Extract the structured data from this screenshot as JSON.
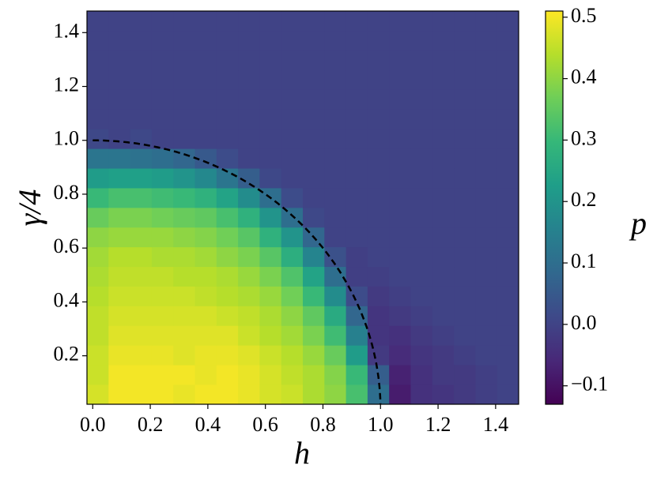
{
  "chart_data": {
    "type": "heatmap",
    "xlabel": "h",
    "ylabel": "γ/4",
    "colorbar_label": "p",
    "x": [
      0.0175,
      0.0925,
      0.1675,
      0.2425,
      0.3175,
      0.3925,
      0.4675,
      0.5425,
      0.6175,
      0.6925,
      0.7675,
      0.8425,
      0.9175,
      0.9925,
      1.0675,
      1.1425,
      1.2175,
      1.2925,
      1.3675,
      1.4425
    ],
    "y": [
      0.057,
      0.13,
      0.203,
      0.276,
      0.349,
      0.422,
      0.495,
      0.568,
      0.641,
      0.714,
      0.787,
      0.86,
      0.933,
      1.006,
      1.079,
      1.152,
      1.225,
      1.298,
      1.371,
      1.444
    ],
    "z": [
      [
        0.47,
        0.5,
        0.5,
        0.5,
        0.49,
        0.5,
        0.5,
        0.49,
        0.47,
        0.46,
        0.43,
        0.4,
        0.32,
        0.1,
        -0.08,
        -0.04,
        -0.03,
        -0.02,
        -0.01,
        0
      ],
      [
        0.46,
        0.5,
        0.5,
        0.5,
        0.5,
        0.49,
        0.5,
        0.49,
        0.47,
        0.45,
        0.43,
        0.39,
        0.3,
        0.06,
        -0.07,
        -0.04,
        -0.02,
        -0.02,
        -0.01,
        0
      ],
      [
        0.46,
        0.49,
        0.49,
        0.49,
        0.48,
        0.49,
        0.49,
        0.48,
        0.46,
        0.44,
        0.41,
        0.36,
        0.22,
        -0.02,
        -0.05,
        -0.03,
        -0.02,
        -0.01,
        0,
        0
      ],
      [
        0.45,
        0.48,
        0.48,
        0.48,
        0.48,
        0.48,
        0.48,
        0.46,
        0.44,
        0.42,
        0.38,
        0.31,
        0.15,
        -0.03,
        -0.04,
        -0.02,
        -0.01,
        0,
        0,
        0
      ],
      [
        0.45,
        0.47,
        0.47,
        0.47,
        0.47,
        0.47,
        0.46,
        0.45,
        0.43,
        0.4,
        0.35,
        0.26,
        0.08,
        -0.03,
        -0.02,
        -0.01,
        0,
        0,
        0,
        0
      ],
      [
        0.44,
        0.46,
        0.46,
        0.46,
        0.46,
        0.45,
        0.44,
        0.43,
        0.41,
        0.37,
        0.3,
        0.18,
        0.02,
        -0.02,
        -0.01,
        0,
        0,
        0,
        0,
        0
      ],
      [
        0.43,
        0.45,
        0.45,
        0.45,
        0.44,
        0.44,
        0.43,
        0.41,
        0.38,
        0.33,
        0.24,
        0.1,
        -0.01,
        -0.01,
        0,
        0,
        0,
        0,
        0,
        0
      ],
      [
        0.42,
        0.44,
        0.44,
        0.43,
        0.43,
        0.42,
        0.4,
        0.38,
        0.34,
        0.27,
        0.16,
        0.03,
        -0.01,
        0,
        0,
        0,
        0,
        0,
        0,
        0
      ],
      [
        0.4,
        0.41,
        0.41,
        0.41,
        0.4,
        0.39,
        0.37,
        0.34,
        0.28,
        0.2,
        0.08,
        0,
        0,
        0,
        0,
        0,
        0,
        0,
        0,
        0
      ],
      [
        0.36,
        0.38,
        0.38,
        0.37,
        0.36,
        0.35,
        0.32,
        0.28,
        0.2,
        0.1,
        0.01,
        0,
        0,
        0,
        0,
        0,
        0,
        0,
        0,
        0
      ],
      [
        0.3,
        0.32,
        0.32,
        0.31,
        0.3,
        0.28,
        0.24,
        0.18,
        0.1,
        0.02,
        0,
        0,
        0,
        0,
        0,
        0,
        0,
        0,
        0,
        0
      ],
      [
        0.22,
        0.23,
        0.23,
        0.22,
        0.2,
        0.17,
        0.12,
        0.06,
        0.01,
        0,
        0,
        0,
        0,
        0,
        0,
        0,
        0,
        0,
        0,
        0
      ],
      [
        0.12,
        0.12,
        0.11,
        0.1,
        0.08,
        0.05,
        0.02,
        0,
        0,
        0,
        0,
        0,
        0,
        0,
        0,
        0,
        0,
        0,
        0,
        0
      ],
      [
        0.01,
        0,
        0.01,
        0,
        0,
        0,
        0,
        0,
        0,
        0,
        0,
        0,
        0,
        0,
        0,
        0,
        0,
        0,
        0,
        0
      ],
      [
        0,
        0,
        0,
        0,
        0,
        0,
        0,
        0,
        0,
        0,
        0,
        0,
        0,
        0,
        0,
        0,
        0,
        0,
        0,
        0
      ],
      [
        0,
        0,
        0,
        0,
        0,
        0,
        0,
        0,
        0,
        0,
        0,
        0,
        0,
        0,
        0,
        0,
        0,
        0,
        0,
        0
      ],
      [
        0,
        0,
        0,
        0,
        0,
        0,
        0,
        0,
        0,
        0,
        0,
        0,
        0,
        0,
        0,
        0,
        0,
        0,
        0,
        0
      ],
      [
        0,
        0,
        0,
        0,
        0,
        0,
        0,
        0,
        0,
        0,
        0,
        0,
        0,
        0,
        0,
        0,
        0,
        0,
        0,
        0
      ],
      [
        0,
        0,
        0,
        0,
        0,
        0,
        0,
        0,
        0,
        0,
        0,
        0,
        0,
        0,
        0,
        0,
        0,
        0,
        0,
        0
      ],
      [
        0,
        0,
        0,
        0,
        0,
        0,
        0,
        0,
        0,
        0,
        0,
        0,
        0,
        0,
        0,
        0,
        0,
        0,
        0,
        0
      ]
    ],
    "xlim": [
      -0.02,
      1.48
    ],
    "ylim": [
      0.02,
      1.48
    ],
    "zlim": [
      -0.13,
      0.51
    ],
    "xticks": [
      {
        "value": 0,
        "label": "0.0"
      },
      0.2,
      0.4,
      0.6,
      0.8,
      {
        "value": 1,
        "label": "1.0"
      },
      1.2,
      1.4
    ],
    "yticks": [
      0.2,
      0.4,
      0.6,
      0.8,
      {
        "value": 1,
        "label": "1.0"
      },
      1.2,
      1.4
    ],
    "zticks": [
      {
        "value": -0.1,
        "label": "−0.1"
      },
      {
        "value": 0,
        "label": "0.0"
      },
      0.1,
      0.2,
      0.3,
      0.4,
      0.5
    ],
    "colormap": [
      "#440154",
      "#482878",
      "#3e4989",
      "#31688e",
      "#26828e",
      "#1f9e89",
      "#35b779",
      "#6ece58",
      "#b5de2b",
      "#fde725"
    ],
    "boundary": {
      "radius": 1,
      "color": "#000000"
    }
  }
}
